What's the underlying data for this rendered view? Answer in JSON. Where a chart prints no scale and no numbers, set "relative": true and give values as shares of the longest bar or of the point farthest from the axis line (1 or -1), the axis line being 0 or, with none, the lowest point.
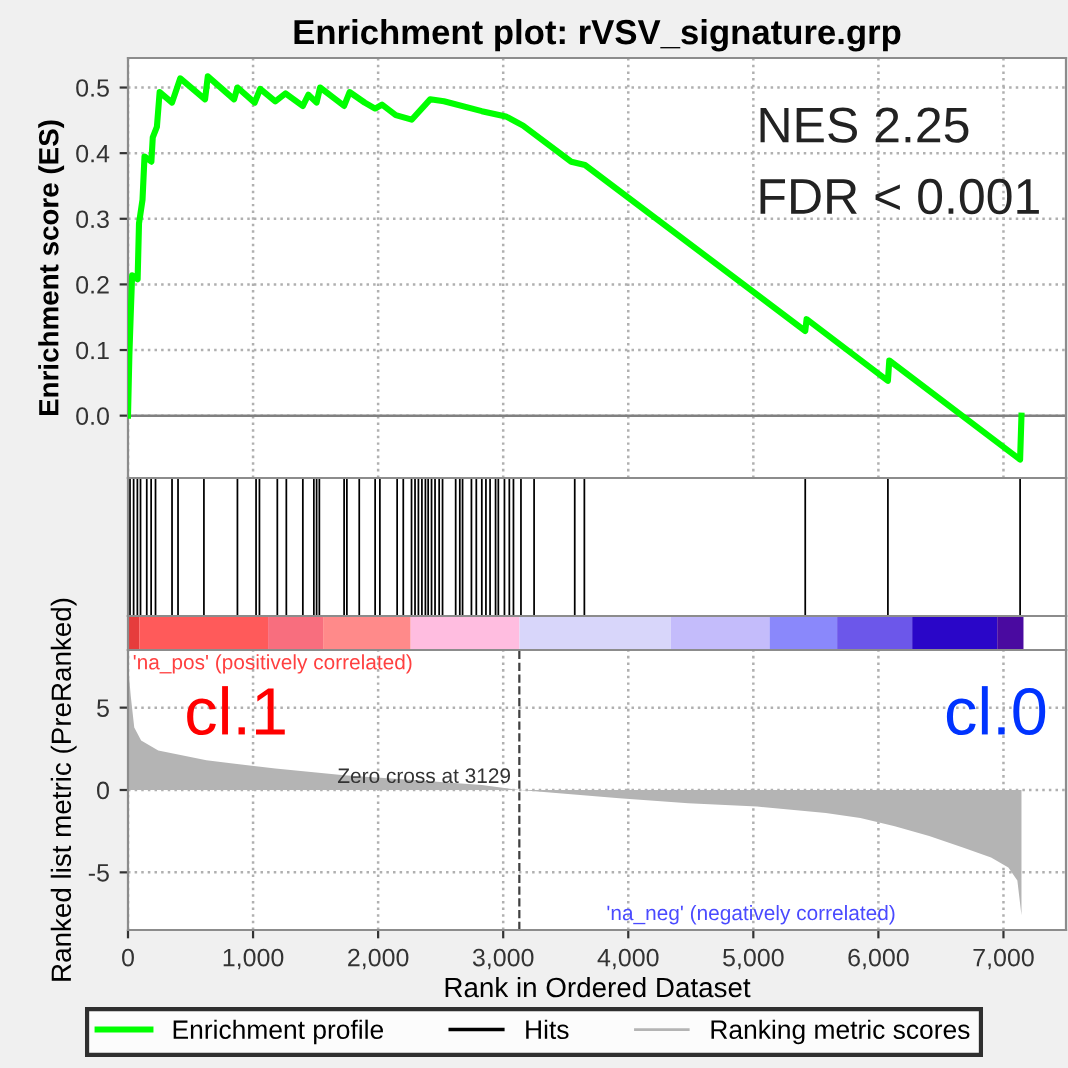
{
  "chart_data": [
    {
      "type": "line",
      "title": "Enrichment plot: rVSV_signature.grp",
      "ylabel": "Enrichment score (ES)",
      "xlim": [
        0,
        7500
      ],
      "xticks": [
        0,
        1000,
        2000,
        3000,
        4000,
        5000,
        6000,
        7000
      ],
      "ylim": [
        -0.095,
        0.545
      ],
      "yticks": [
        {
          "value": 0,
          "label": "0.0"
        },
        0.1,
        0.2,
        0.3,
        0.4,
        0.5
      ],
      "tick_labels": "y",
      "grid": true,
      "line_style": "solid",
      "marker": "none",
      "annotations": [
        "NES 2.25",
        "FDR < 0.001"
      ],
      "ref_lines": [
        {
          "axis": "y",
          "value": 0,
          "color": "#808080",
          "line_style": "solid"
        }
      ],
      "series": [
        {
          "name": "Enrichment profile",
          "color": "#00ff00",
          "x": [
            0,
            11,
            22,
            33,
            77,
            88,
            116,
            132,
            187,
            198,
            231,
            253,
            352,
            418,
            616,
            638,
            848,
            875,
            1013,
            1057,
            1178,
            1260,
            1398,
            1442,
            1508,
            1536,
            1728,
            1772,
            1893,
            1976,
            2031,
            2141,
            2268,
            2416,
            2526,
            2829,
            3021,
            3159,
            3544,
            3654,
            5415,
            5426,
            6076,
            6087,
            7133,
            7144
          ],
          "values": [
            0,
            0.093,
            0.156,
            0.214,
            0.208,
            0.293,
            0.329,
            0.395,
            0.387,
            0.424,
            0.44,
            0.493,
            0.477,
            0.514,
            0.482,
            0.517,
            0.482,
            0.5,
            0.477,
            0.498,
            0.479,
            0.491,
            0.472,
            0.489,
            0.477,
            0.5,
            0.472,
            0.493,
            0.477,
            0.468,
            0.474,
            0.458,
            0.451,
            0.482,
            0.479,
            0.464,
            0.456,
            0.442,
            0.387,
            0.382,
            0.129,
            0.147,
            0.053,
            0.084,
            -0.067,
            0
          ]
        }
      ]
    },
    {
      "type": "bar",
      "relative": true,
      "xlim": [
        0,
        7500
      ],
      "tick_labels": false,
      "series": [
        {
          "name": "Hits",
          "color": "#000000",
          "x": [
            16,
            45,
            75,
            100,
            150,
            185,
            220,
            352,
            400,
            607,
            875,
            1024,
            1051,
            1194,
            1266,
            1398,
            1486,
            1508,
            1530,
            1728,
            1750,
            1849,
            1976,
            2014,
            2152,
            2201,
            2267,
            2295,
            2322,
            2350,
            2378,
            2400,
            2427,
            2455,
            2488,
            2515,
            2620,
            2653,
            2675,
            2746,
            2785,
            2829,
            2862,
            2895,
            2939,
            2961,
            3010,
            3049,
            3082,
            3142,
            3247,
            3572,
            3649,
            5415,
            6076,
            7133
          ],
          "values": [
            1,
            1,
            1,
            1,
            1,
            1,
            1,
            1,
            1,
            1,
            1,
            1,
            1,
            1,
            1,
            1,
            1,
            1,
            1,
            1,
            1,
            1,
            1,
            1,
            1,
            1,
            1,
            1,
            1,
            1,
            1,
            1,
            1,
            1,
            1,
            1,
            1,
            1,
            1,
            1,
            1,
            1,
            1,
            1,
            1,
            1,
            1,
            1,
            1,
            1,
            1,
            1,
            1,
            1,
            1,
            1
          ]
        }
      ]
    },
    {
      "type": "bar",
      "orientation": "horizontal",
      "stacked": true,
      "categories": [
        null
      ],
      "xlim": [
        0,
        7500
      ],
      "tick_labels": false,
      "series": [
        {
          "color": "#e63c3c",
          "values": [
            90
          ]
        },
        {
          "color": "#ff5a5a",
          "values": [
            1030
          ]
        },
        {
          "color": "#f86e7e",
          "values": [
            440
          ]
        },
        {
          "color": "#ff8a8a",
          "values": [
            700
          ]
        },
        {
          "color": "#ffbde0",
          "values": [
            870
          ]
        },
        {
          "color": "#d8d6fa",
          "values": [
            1210
          ]
        },
        {
          "color": "#c4bcfb",
          "values": [
            790
          ]
        },
        {
          "color": "#8a88fb",
          "values": [
            540
          ]
        },
        {
          "color": "#6c57ea",
          "values": [
            600
          ]
        },
        {
          "color": "#2a06c8",
          "values": [
            680
          ]
        },
        {
          "color": "#4a0aa0",
          "values": [
            210
          ]
        }
      ]
    },
    {
      "type": "area",
      "xlabel": "Rank in Ordered Dataset",
      "ylabel": "Ranked list metric (PreRanked)",
      "xlim": [
        0,
        7500
      ],
      "xticks": [
        0,
        {
          "value": 1000,
          "label": "1,000"
        },
        {
          "value": 2000,
          "label": "2,000"
        },
        {
          "value": 3000,
          "label": "3,000"
        },
        {
          "value": 4000,
          "label": "4,000"
        },
        {
          "value": 5000,
          "label": "5,000"
        },
        {
          "value": 6000,
          "label": "6,000"
        },
        {
          "value": 7000,
          "label": "7,000"
        }
      ],
      "ylim": [
        -8.5,
        8.5
      ],
      "yticks": [
        -5,
        0,
        5
      ],
      "grid": true,
      "legend": "bottom",
      "annotations": [
        "'na_pos' (positively correlated)",
        "cl.1",
        "cl.0",
        "'na_neg' (negatively correlated)"
      ],
      "ref_lines": [
        {
          "axis": "x",
          "value": 3129,
          "label": "Zero cross at 3129",
          "color": "#404040",
          "line_style": "dashed"
        }
      ],
      "series": [
        {
          "name": "Ranking metric scores",
          "color": "#b4b4b4",
          "x": [
            0,
            22,
            50,
            105,
            242,
            627,
            1178,
            1728,
            2279,
            2829,
            3132,
            3929,
            4480,
            5030,
            5580,
            5856,
            6131,
            6406,
            6681,
            6901,
            7039,
            7111,
            7144
          ],
          "values": [
            7.6,
            5.7,
            3.8,
            3.0,
            2.4,
            1.8,
            1.3,
            0.9,
            0.6,
            0.3,
            0,
            -0.5,
            -0.8,
            -1.0,
            -1.4,
            -1.7,
            -2.2,
            -2.8,
            -3.5,
            -4.1,
            -4.7,
            -5.5,
            -7.6
          ]
        }
      ]
    }
  ]
}
